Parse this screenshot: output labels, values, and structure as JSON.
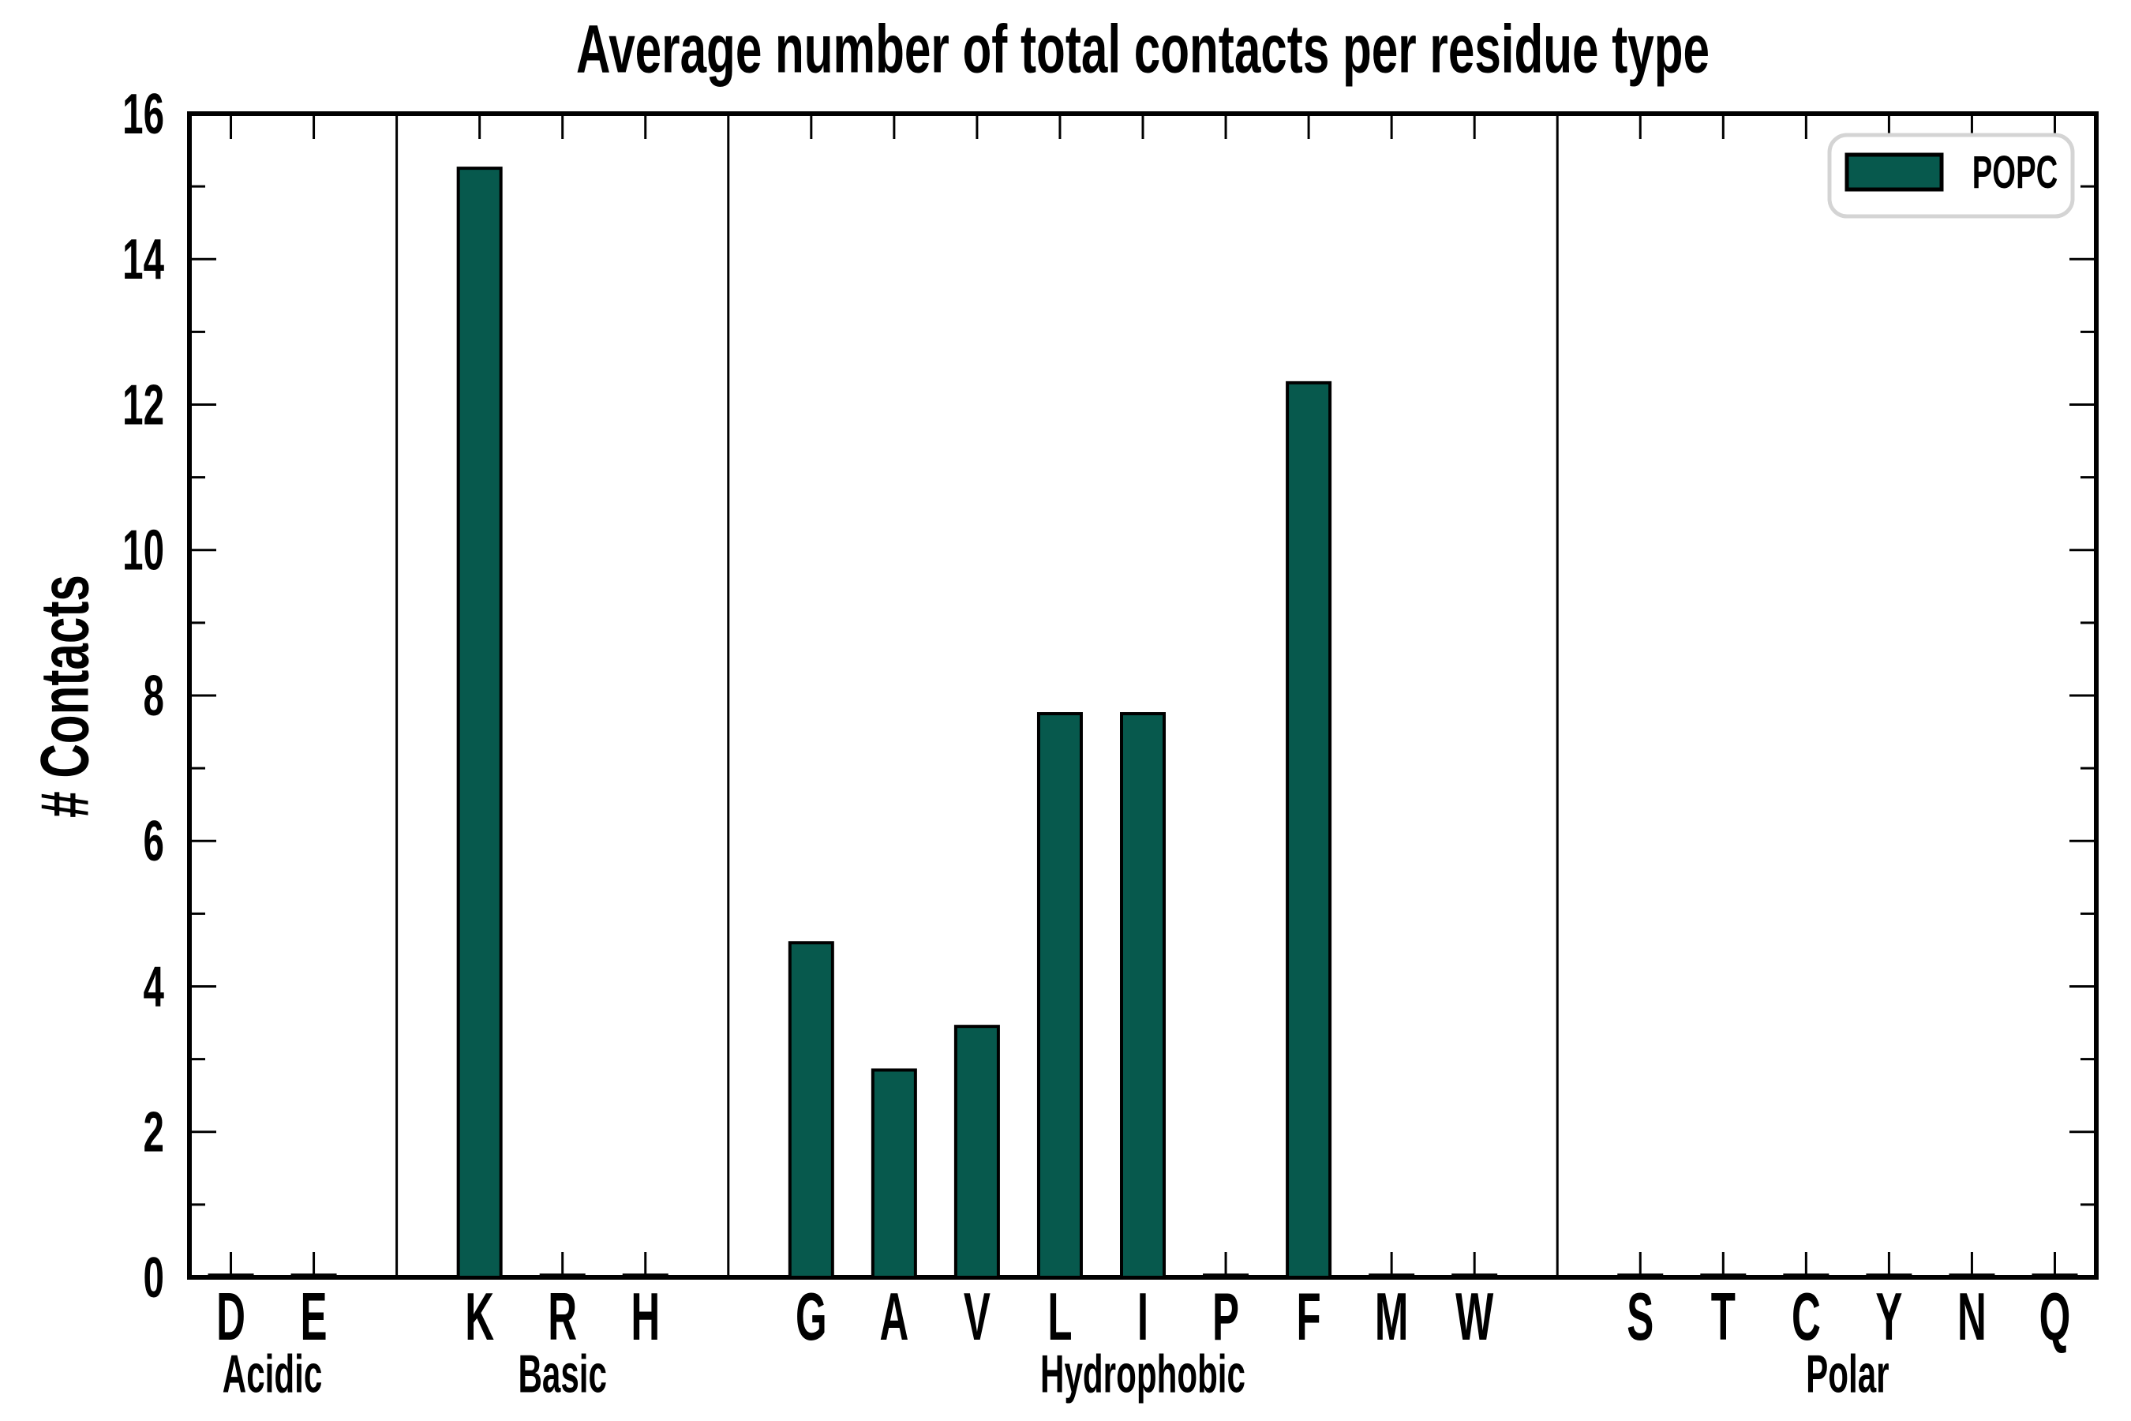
{
  "chart_data": {
    "type": "bar",
    "title": "Average number of total contacts per residue type",
    "xlabel": "",
    "ylabel": "# Contacts",
    "ylim": [
      0,
      16
    ],
    "ytick_labels": [
      "0",
      "2",
      "4",
      "6",
      "8",
      "10",
      "12",
      "14",
      "16"
    ],
    "ytick_values": [
      0,
      2,
      4,
      6,
      8,
      10,
      12,
      14,
      16
    ],
    "yminor_tick_values": [
      1,
      3,
      5,
      7,
      9,
      11,
      13,
      15
    ],
    "grid": false,
    "legend": {
      "position": "upper right",
      "entries": [
        {
          "label": "POPC",
          "color": "#07594d"
        }
      ]
    },
    "bar_color": "#07594d",
    "bar_edge_color": "#000000",
    "categories": [
      "D",
      "E",
      "K",
      "R",
      "H",
      "G",
      "A",
      "V",
      "L",
      "I",
      "P",
      "F",
      "M",
      "W",
      "S",
      "T",
      "C",
      "Y",
      "N",
      "Q"
    ],
    "values": [
      0.03,
      0.03,
      15.25,
      0.03,
      0.03,
      4.6,
      2.85,
      3.45,
      7.75,
      7.75,
      0.03,
      12.3,
      0.03,
      0.03,
      0.03,
      0.03,
      0.03,
      0.03,
      0.03,
      0.03
    ],
    "groups": [
      {
        "name": "Acidic",
        "residues": [
          "D",
          "E"
        ],
        "values": [
          0.03,
          0.03
        ]
      },
      {
        "name": "Basic",
        "residues": [
          "K",
          "R",
          "H"
        ],
        "values": [
          15.25,
          0.03,
          0.03
        ]
      },
      {
        "name": "Hydrophobic",
        "residues": [
          "G",
          "A",
          "V",
          "L",
          "I",
          "P",
          "F",
          "M",
          "W"
        ],
        "values": [
          4.6,
          2.85,
          3.45,
          7.75,
          7.75,
          0.03,
          12.3,
          0.03,
          0.03
        ]
      },
      {
        "name": "Polar",
        "residues": [
          "S",
          "T",
          "C",
          "Y",
          "N",
          "Q"
        ],
        "values": [
          0.03,
          0.03,
          0.03,
          0.03,
          0.03,
          0.03
        ]
      }
    ]
  }
}
